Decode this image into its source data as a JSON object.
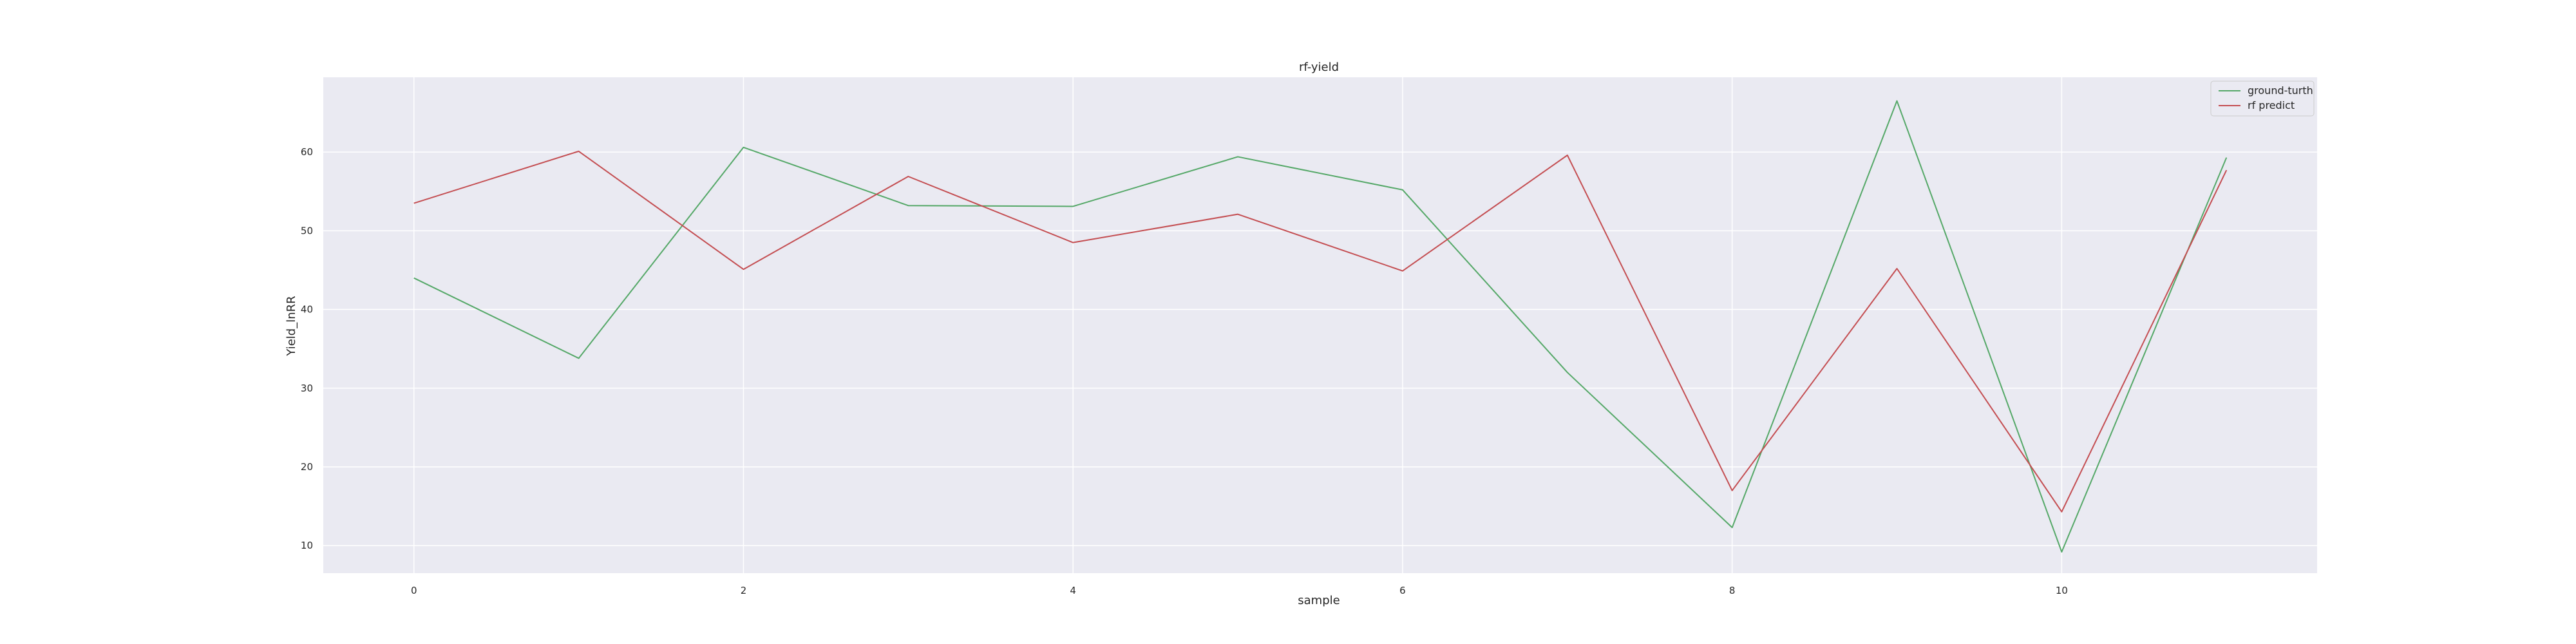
{
  "chart_data": {
    "type": "line",
    "title": "rf-yield",
    "xlabel": "sample",
    "ylabel": "Yield_lnRR",
    "x": [
      0,
      1,
      2,
      3,
      4,
      5,
      6,
      7,
      8,
      9,
      10,
      11
    ],
    "xlim": [
      -0.55,
      11.55
    ],
    "ylim": [
      6.5,
      69.5
    ],
    "xticks": [
      0,
      2,
      4,
      6,
      8,
      10
    ],
    "yticks": [
      10,
      20,
      30,
      40,
      50,
      60
    ],
    "grid": true,
    "legend_position": "top-right",
    "series": [
      {
        "name": "ground-turth",
        "color": "#55a868",
        "values": [
          44.0,
          33.8,
          60.6,
          53.2,
          53.1,
          59.4,
          55.2,
          32.0,
          12.3,
          66.5,
          9.2,
          59.3
        ]
      },
      {
        "name": "rf predict",
        "color": "#c44e52",
        "values": [
          53.5,
          60.1,
          45.1,
          56.9,
          48.5,
          52.1,
          44.9,
          59.6,
          17.0,
          45.2,
          14.3,
          57.7
        ]
      }
    ]
  }
}
